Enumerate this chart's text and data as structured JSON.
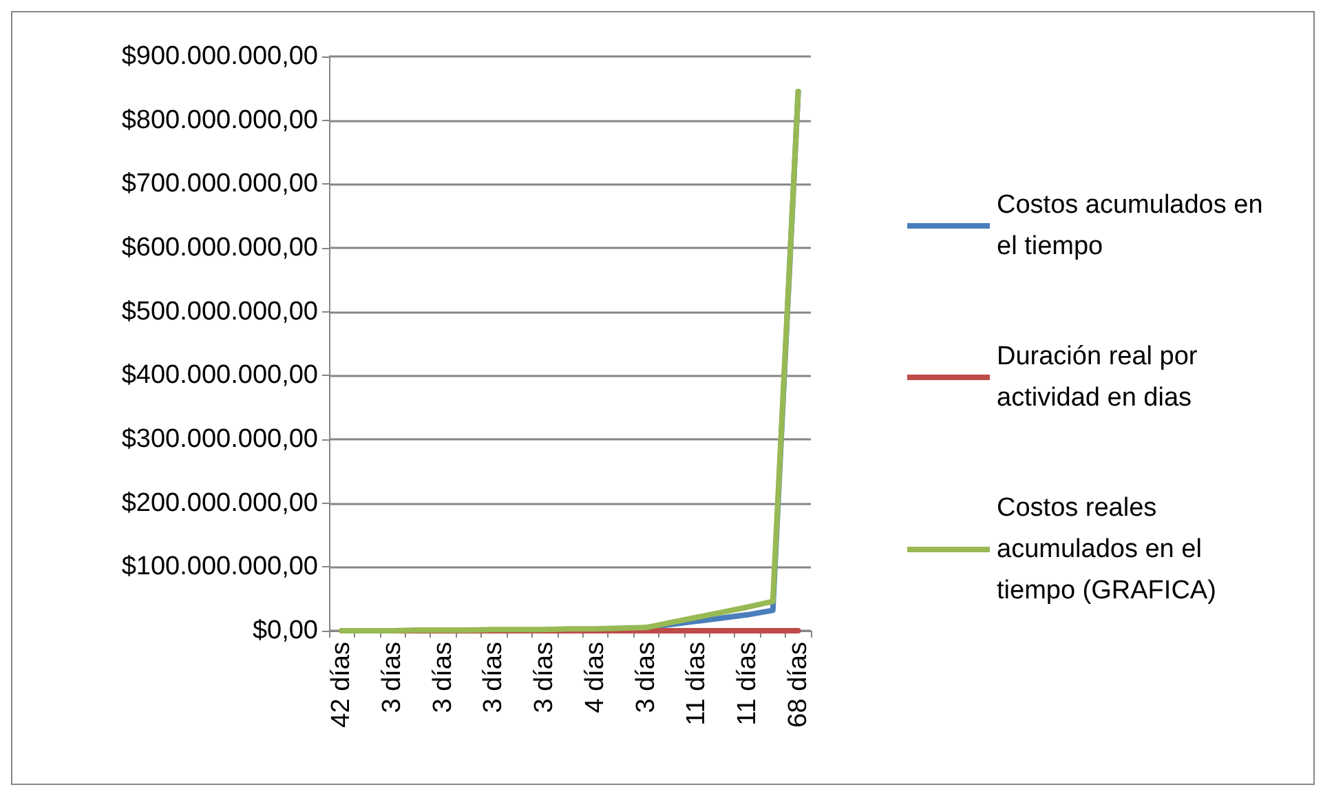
{
  "chart_data": {
    "type": "line",
    "categories": [
      "42 días",
      null,
      "3 días",
      null,
      "3 días",
      null,
      "3 días",
      null,
      "3 días",
      null,
      "4 días",
      null,
      "3 días",
      null,
      "11 días",
      null,
      "11 días",
      null,
      "68 días"
    ],
    "series": [
      {
        "name": "Costos acumulados en el tiempo",
        "color": "#4a7ebb",
        "values": [
          null,
          null,
          null,
          null,
          null,
          null,
          null,
          null,
          null,
          null,
          null,
          null,
          5000000,
          10000000,
          15000000,
          20000000,
          25000000,
          32000000,
          845000000
        ]
      },
      {
        "name": "Duración real por actividad en dias",
        "color": "#be4b48",
        "values": [
          0,
          0,
          0,
          0,
          0,
          0,
          0,
          0,
          0,
          0,
          0,
          0,
          0,
          0,
          0,
          0,
          0,
          0,
          0
        ]
      },
      {
        "name": "Costos reales acumulados en el tiempo (GRAFICA)",
        "color": "#98b954",
        "values": [
          0,
          0,
          0,
          1000000,
          1000000,
          1000000,
          2000000,
          2000000,
          2000000,
          3000000,
          3000000,
          4000000,
          5000000,
          13000000,
          21000000,
          29000000,
          37000000,
          46000000,
          845000000
        ]
      }
    ],
    "ylim": [
      0,
      900000000
    ],
    "yticks": [
      {
        "value": 0,
        "label": "$0,00"
      },
      {
        "value": 100000000,
        "label": "$100.000.000,00"
      },
      {
        "value": 200000000,
        "label": "$200.000.000,00"
      },
      {
        "value": 300000000,
        "label": "$300.000.000,00"
      },
      {
        "value": 400000000,
        "label": "$400.000.000,00"
      },
      {
        "value": 500000000,
        "label": "$500.000.000,00"
      },
      {
        "value": 600000000,
        "label": "$600.000.000,00"
      },
      {
        "value": 700000000,
        "label": "$700.000.000,00"
      },
      {
        "value": 800000000,
        "label": "$800.000.000,00"
      },
      {
        "value": 900000000,
        "label": "$900.000.000,00"
      }
    ],
    "grid": "y",
    "legend": "right",
    "marker": "none"
  }
}
